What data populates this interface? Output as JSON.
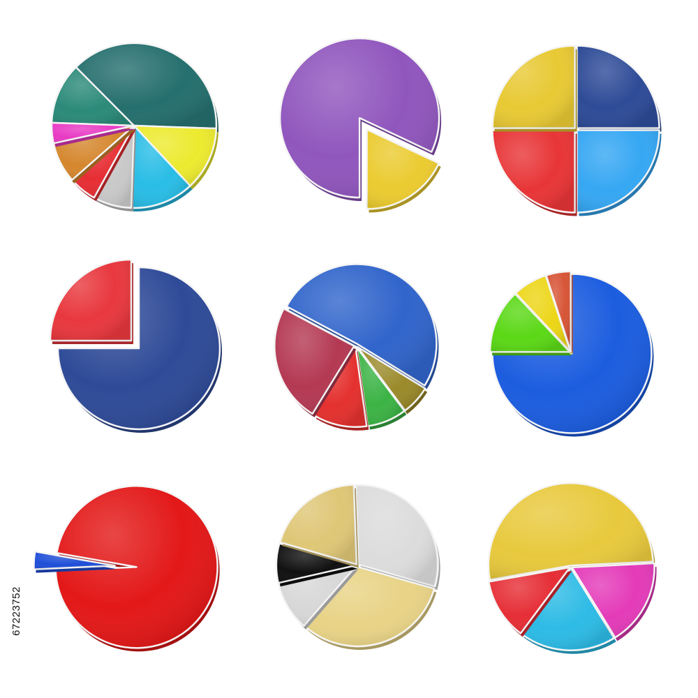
{
  "stock_id": "67223752",
  "chart_data": [
    {
      "type": "pie",
      "slices": [
        {
          "value": 12.0,
          "color": "#2b8a79"
        },
        {
          "value": 38.0,
          "color": "#256f6e"
        },
        {
          "value": 12.5,
          "color": "#ecea2f"
        },
        {
          "value": 12.5,
          "color": "#29bde6"
        },
        {
          "value": 7.5,
          "color": "#c8c9c8"
        },
        {
          "value": 5.5,
          "color": "#e62e34"
        },
        {
          "value": 8.0,
          "color": "#d5872e"
        },
        {
          "value": 4.0,
          "color": "#e83ac4"
        }
      ]
    },
    {
      "type": "pie",
      "slices": [
        {
          "value": 82.0,
          "color": "#9056bd"
        },
        {
          "value": 18.0,
          "color": "#ebcb31",
          "exploded": true
        }
      ]
    },
    {
      "type": "pie",
      "slices": [
        {
          "value": 25,
          "color": "#2e4b97"
        },
        {
          "value": 25,
          "color": "#36a7f3"
        },
        {
          "value": 25,
          "color": "#e83537"
        },
        {
          "value": 25,
          "color": "#e8c934"
        }
      ]
    },
    {
      "type": "pie",
      "slices": [
        {
          "value": 75,
          "color": "#2f4b98"
        },
        {
          "value": 25,
          "color": "#e8383e",
          "exploded": true
        }
      ]
    },
    {
      "type": "pie",
      "slices": [
        {
          "value": 51.0,
          "color": "#3165cb"
        },
        {
          "value": 6.0,
          "color": "#9a8a2b"
        },
        {
          "value": 8.0,
          "color": "#3cb345"
        },
        {
          "value": 11.0,
          "color": "#e4312f"
        },
        {
          "value": 24.0,
          "color": "#b43953"
        }
      ]
    },
    {
      "type": "pie",
      "slices": [
        {
          "value": 75.0,
          "color": "#1c5ddf"
        },
        {
          "value": 13.0,
          "color": "#5bd816"
        },
        {
          "value": 7.0,
          "color": "#ecd617"
        },
        {
          "value": 5.0,
          "color": "#d75537"
        }
      ]
    },
    {
      "type": "pie",
      "slices": [
        {
          "value": 96.5,
          "color": "#e31818"
        },
        {
          "value": 3.5,
          "color": "#1f4fd8",
          "exploded": true
        }
      ]
    },
    {
      "type": "pie",
      "slices": [
        {
          "value": 30.0,
          "color": "#dcdcdc"
        },
        {
          "value": 32.0,
          "color": "#e8d386"
        },
        {
          "value": 10.0,
          "color": "#d7d7d7"
        },
        {
          "value": 8.0,
          "color": "#111111"
        },
        {
          "value": 20.0,
          "color": "#dfc777"
        }
      ]
    },
    {
      "type": "pie",
      "slices": [
        {
          "value": 52.0,
          "color": "#e8c93d"
        },
        {
          "value": 17.0,
          "color": "#e43bb9"
        },
        {
          "value": 19.0,
          "color": "#2dbbe5"
        },
        {
          "value": 12.0,
          "color": "#e62e36"
        }
      ]
    }
  ]
}
